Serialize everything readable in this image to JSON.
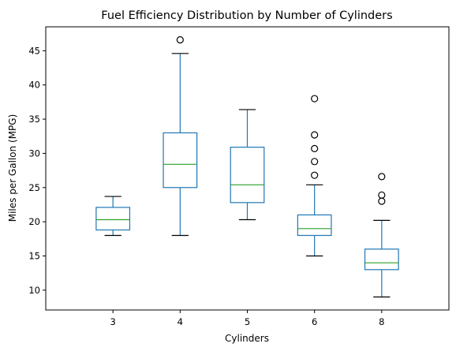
{
  "chart_data": {
    "type": "boxplot",
    "title": "Fuel Efficiency Distribution by Number of Cylinders",
    "xlabel": "Cylinders",
    "ylabel": "Miles per Gallon (MPG)",
    "ylim": [
      7.1,
      48.5
    ],
    "yticks": [
      10,
      15,
      20,
      25,
      30,
      35,
      40,
      45
    ],
    "grid": false,
    "colors": {
      "box": "#1f77b4",
      "median": "#2ca02c",
      "caps": "#000000",
      "outlier": "#000000"
    },
    "categories": [
      "3",
      "4",
      "5",
      "6",
      "8"
    ],
    "boxes": [
      {
        "category": "3",
        "whisker_low": 18.0,
        "q1": 18.8,
        "median": 20.3,
        "q3": 22.1,
        "whisker_high": 23.7,
        "outliers": []
      },
      {
        "category": "4",
        "whisker_low": 18.0,
        "q1": 25.0,
        "median": 28.4,
        "q3": 33.0,
        "whisker_high": 44.6,
        "outliers": [
          46.6
        ]
      },
      {
        "category": "5",
        "whisker_low": 20.3,
        "q1": 22.8,
        "median": 25.4,
        "q3": 30.9,
        "whisker_high": 36.4,
        "outliers": []
      },
      {
        "category": "6",
        "whisker_low": 15.0,
        "q1": 18.0,
        "median": 19.0,
        "q3": 21.0,
        "whisker_high": 25.4,
        "outliers": [
          26.8,
          28.8,
          30.7,
          32.7,
          38.0
        ]
      },
      {
        "category": "8",
        "whisker_low": 9.0,
        "q1": 13.0,
        "median": 14.0,
        "q3": 16.0,
        "whisker_high": 20.2,
        "outliers": [
          23.0,
          23.9,
          26.6
        ]
      }
    ]
  }
}
